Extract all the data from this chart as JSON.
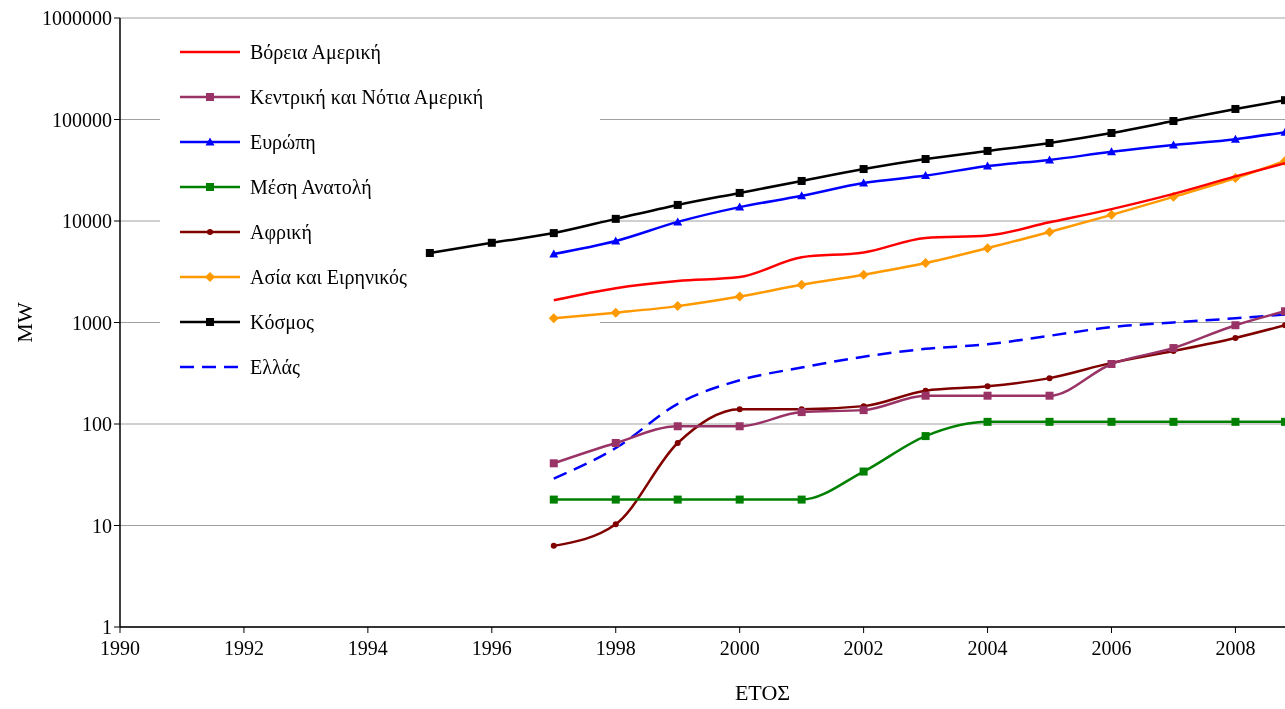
{
  "chart_data": {
    "type": "line",
    "xlabel": "ΕΤΟΣ",
    "ylabel": "MW",
    "log": "y",
    "grid": "y",
    "legend": "top left",
    "xlim": [
      1990,
      2008.8
    ],
    "xticks": [
      1990,
      1992,
      1994,
      1996,
      1998,
      2000,
      2002,
      2004,
      2006,
      2008
    ],
    "ylim": [
      1,
      1000000
    ],
    "yticks": [
      1,
      10,
      100,
      1000,
      10000,
      100000,
      1000000
    ],
    "series": [
      {
        "name": "Βόρεια Αμερική",
        "color": "#ff0000",
        "marker": "none",
        "x": [
          1997,
          1998,
          1999,
          2000,
          2001,
          2002,
          2003,
          2004,
          2005,
          2006,
          2007,
          2008,
          2008.8
        ],
        "values": [
          1660,
          2180,
          2560,
          2800,
          4400,
          4900,
          6800,
          7200,
          9700,
          13100,
          18500,
          27500,
          37000
        ]
      },
      {
        "name": "Κεντρική και Νότια Αμερική",
        "color": "#993366",
        "marker": "square",
        "x": [
          1997,
          1998,
          1999,
          2000,
          2001,
          2002,
          2003,
          2004,
          2005,
          2006,
          2007,
          2008,
          2008.8
        ],
        "values": [
          41,
          65,
          95,
          95,
          131,
          137,
          190,
          190,
          190,
          390,
          560,
          940,
          1290
        ]
      },
      {
        "name": "Ευρώπη",
        "color": "#0000ff",
        "marker": "triangle",
        "x": [
          1997,
          1998,
          1999,
          2000,
          2001,
          2002,
          2003,
          2004,
          2005,
          2006,
          2007,
          2008,
          2008.8
        ],
        "values": [
          4730,
          6350,
          9800,
          13700,
          17700,
          23700,
          28000,
          34800,
          40000,
          48000,
          56000,
          64000,
          75000
        ]
      },
      {
        "name": "Μέση Ανατολή",
        "color": "#008000",
        "marker": "square",
        "x": [
          1997,
          1998,
          1999,
          2000,
          2001,
          2002,
          2003,
          2004,
          2005,
          2006,
          2007,
          2008,
          2008.8
        ],
        "values": [
          18,
          18,
          18,
          18,
          18,
          34,
          76,
          105,
          105,
          105,
          105,
          105,
          105
        ]
      },
      {
        "name": "Αφρική",
        "color": "#800000",
        "marker": "circle",
        "x": [
          1997,
          1998,
          1999,
          2000,
          2001,
          2002,
          2003,
          2004,
          2005,
          2006,
          2007,
          2008,
          2008.8
        ],
        "values": [
          6.3,
          10.3,
          65,
          140,
          140,
          150,
          213,
          235,
          283,
          400,
          525,
          705,
          940
        ]
      },
      {
        "name": "Ασία και Ειρηνικός",
        "color": "#ff9900",
        "marker": "diamond",
        "x": [
          1997,
          1998,
          1999,
          2000,
          2001,
          2002,
          2003,
          2004,
          2005,
          2006,
          2007,
          2008,
          2008.8
        ],
        "values": [
          1100,
          1250,
          1450,
          1800,
          2350,
          2950,
          3850,
          5400,
          7800,
          11500,
          17300,
          26500,
          39000
        ]
      },
      {
        "name": "Κόσμος",
        "color": "#000000",
        "marker": "square",
        "x": [
          1995,
          1996,
          1997,
          1998,
          1999,
          2000,
          2001,
          2002,
          2003,
          2004,
          2005,
          2006,
          2007,
          2008,
          2008.8
        ],
        "values": [
          4840,
          6100,
          7600,
          10500,
          14400,
          18900,
          24800,
          32500,
          40800,
          49000,
          58700,
          73600,
          96600,
          127000,
          155000
        ]
      },
      {
        "name": "Ελλάς",
        "color": "#0000ff",
        "marker": "none",
        "line_style": "dashed",
        "x": [
          1997,
          1998,
          1999,
          2000,
          2001,
          2002,
          2003,
          2004,
          2005,
          2006,
          2007,
          2008,
          2008.8
        ],
        "values": [
          29,
          58,
          158,
          270,
          360,
          460,
          550,
          610,
          740,
          900,
          1000,
          1100,
          1200
        ]
      }
    ]
  }
}
